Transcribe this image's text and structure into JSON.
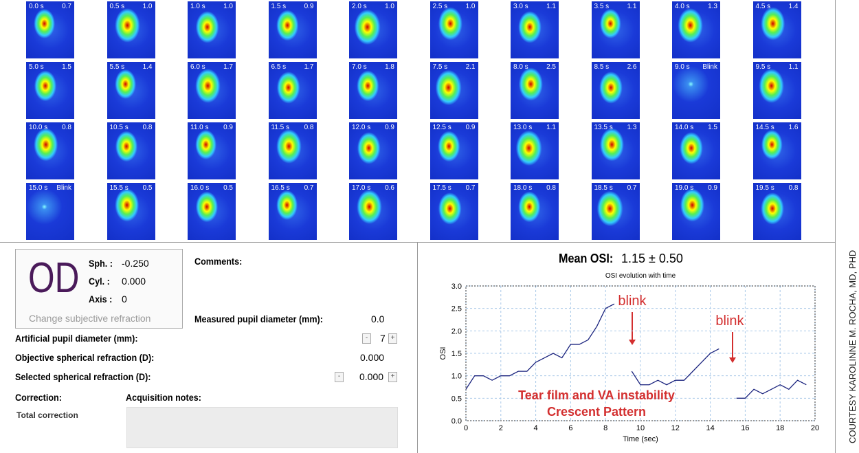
{
  "frames": [
    {
      "time": "0.0 s",
      "osi": "0.7"
    },
    {
      "time": "0.5 s",
      "osi": "1.0"
    },
    {
      "time": "1.0 s",
      "osi": "1.0"
    },
    {
      "time": "1.5 s",
      "osi": "0.9"
    },
    {
      "time": "2.0 s",
      "osi": "1.0"
    },
    {
      "time": "2.5 s",
      "osi": "1.0"
    },
    {
      "time": "3.0 s",
      "osi": "1.1"
    },
    {
      "time": "3.5 s",
      "osi": "1.1"
    },
    {
      "time": "4.0 s",
      "osi": "1.3"
    },
    {
      "time": "4.5 s",
      "osi": "1.4"
    },
    {
      "time": "5.0 s",
      "osi": "1.5"
    },
    {
      "time": "5.5 s",
      "osi": "1.4"
    },
    {
      "time": "6.0 s",
      "osi": "1.7"
    },
    {
      "time": "6.5 s",
      "osi": "1.7"
    },
    {
      "time": "7.0 s",
      "osi": "1.8"
    },
    {
      "time": "7.5 s",
      "osi": "2.1"
    },
    {
      "time": "8.0 s",
      "osi": "2.5"
    },
    {
      "time": "8.5 s",
      "osi": "2.6"
    },
    {
      "time": "9.0 s",
      "osi": "Blink"
    },
    {
      "time": "9.5 s",
      "osi": "1.1"
    },
    {
      "time": "10.0 s",
      "osi": "0.8"
    },
    {
      "time": "10.5 s",
      "osi": "0.8"
    },
    {
      "time": "11.0 s",
      "osi": "0.9"
    },
    {
      "time": "11.5 s",
      "osi": "0.8"
    },
    {
      "time": "12.0 s",
      "osi": "0.9"
    },
    {
      "time": "12.5 s",
      "osi": "0.9"
    },
    {
      "time": "13.0 s",
      "osi": "1.1"
    },
    {
      "time": "13.5 s",
      "osi": "1.3"
    },
    {
      "time": "14.0 s",
      "osi": "1.5"
    },
    {
      "time": "14.5 s",
      "osi": "1.6"
    },
    {
      "time": "15.0 s",
      "osi": "Blink"
    },
    {
      "time": "15.5 s",
      "osi": "0.5"
    },
    {
      "time": "16.0 s",
      "osi": "0.5"
    },
    {
      "time": "16.5 s",
      "osi": "0.7"
    },
    {
      "time": "17.0 s",
      "osi": "0.6"
    },
    {
      "time": "17.5 s",
      "osi": "0.7"
    },
    {
      "time": "18.0 s",
      "osi": "0.8"
    },
    {
      "time": "18.5 s",
      "osi": "0.7"
    },
    {
      "time": "19.0 s",
      "osi": "0.9"
    },
    {
      "time": "19.5 s",
      "osi": "0.8"
    }
  ],
  "refraction": {
    "eye": "OD",
    "sph_label": "Sph. :",
    "sph": "-0.250",
    "cyl_label": "Cyl. :",
    "cyl": "0.000",
    "axis_label": "Axis :",
    "axis": "0",
    "button": "Change subjective refraction"
  },
  "comments_label": "Comments:",
  "measured_pupil": {
    "label": "Measured pupil diameter (mm):",
    "value": "0.0"
  },
  "artificial_pupil": {
    "label": "Artificial pupil diameter (mm):",
    "value": "7",
    "minus": "-",
    "plus": "+"
  },
  "objective_refraction": {
    "label": "Objective spherical refraction (D):",
    "value": "0.000"
  },
  "selected_refraction": {
    "label": "Selected spherical refraction (D):",
    "value": "0.000",
    "minus": "-",
    "plus": "+"
  },
  "correction": {
    "label": "Correction:",
    "value": "Total correction"
  },
  "acquisition_notes_label": "Acquisition notes:",
  "mean_osi": {
    "label": "Mean OSI:",
    "value": "1.15 ± 0.50"
  },
  "credit": "COURTESY KAROLINNE M. ROCHA, MD, PHD",
  "chart_data": {
    "type": "line",
    "title": "OSI evolution with time",
    "xlabel": "Time (sec)",
    "ylabel": "OSI",
    "x": [
      0,
      0.5,
      1,
      1.5,
      2,
      2.5,
      3,
      3.5,
      4,
      4.5,
      5,
      5.5,
      6,
      6.5,
      7,
      7.5,
      8,
      8.5,
      9,
      9.5,
      10,
      10.5,
      11,
      11.5,
      12,
      12.5,
      13,
      13.5,
      14,
      14.5,
      15,
      15.5,
      16,
      16.5,
      17,
      17.5,
      18,
      18.5,
      19,
      19.5
    ],
    "series": [
      {
        "name": "OSI",
        "color": "#1a237e",
        "values": [
          0.7,
          1.0,
          1.0,
          0.9,
          1.0,
          1.0,
          1.1,
          1.1,
          1.3,
          1.4,
          1.5,
          1.4,
          1.7,
          1.7,
          1.8,
          2.1,
          2.5,
          2.6,
          null,
          1.1,
          0.8,
          0.8,
          0.9,
          0.8,
          0.9,
          0.9,
          1.1,
          1.3,
          1.5,
          1.6,
          null,
          0.5,
          0.5,
          0.7,
          0.6,
          0.7,
          0.8,
          0.7,
          0.9,
          0.8
        ]
      }
    ],
    "xlim": [
      0,
      20
    ],
    "ylim": [
      0,
      3
    ],
    "xticks": [
      0,
      2,
      4,
      6,
      8,
      10,
      12,
      14,
      16,
      18,
      20
    ],
    "yticks": [
      {
        "value": 0,
        "label": "0.0"
      },
      {
        "value": 0.5,
        "label": "0.5"
      },
      {
        "value": 1,
        "label": "1.0"
      },
      {
        "value": 1.5,
        "label": "1.5"
      },
      {
        "value": 2,
        "label": "2.0"
      },
      {
        "value": 2.5,
        "label": "2.5"
      },
      {
        "value": 3,
        "label": "3.0"
      }
    ],
    "grid": true,
    "annotations": [
      "blink",
      "blink",
      "Tear film and VA instability",
      "Crescent Pattern"
    ]
  }
}
